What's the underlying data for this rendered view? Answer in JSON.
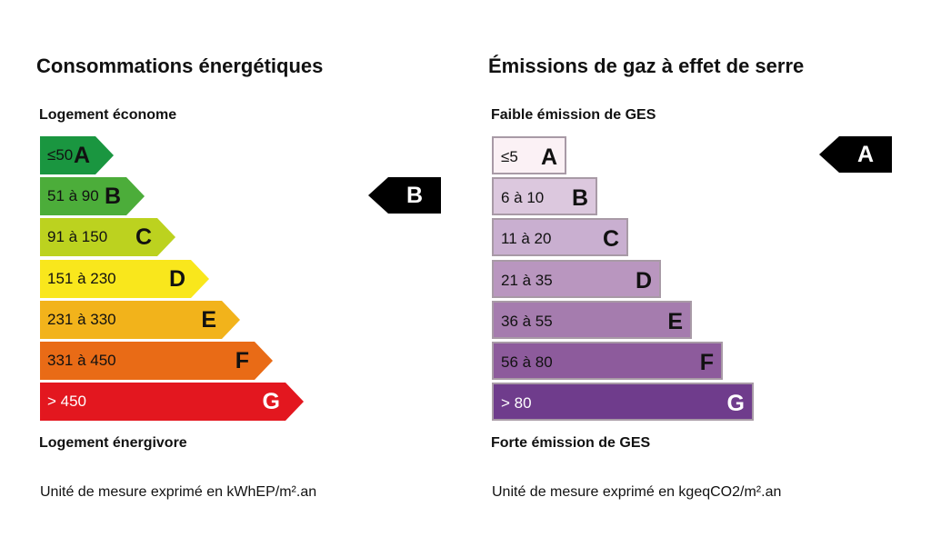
{
  "energy": {
    "title": "Consommations énergétiques",
    "top_label": "Logement économe",
    "bottom_label": "Logement énergivore",
    "unit_note": "Unité de mesure exprimé en kWhEP/m².an",
    "rating": "B",
    "classes": [
      {
        "range": "≤50",
        "letter": "A",
        "color": "#1a9640",
        "text_color": "#111111"
      },
      {
        "range": "51 à 90",
        "letter": "B",
        "color": "#4cad3a",
        "text_color": "#111111"
      },
      {
        "range": "91 à 150",
        "letter": "C",
        "color": "#bcd21f",
        "text_color": "#111111"
      },
      {
        "range": "151 à 230",
        "letter": "D",
        "color": "#f9e71c",
        "text_color": "#111111"
      },
      {
        "range": "231 à 330",
        "letter": "E",
        "color": "#f2b31b",
        "text_color": "#111111"
      },
      {
        "range": "331 à 450",
        "letter": "F",
        "color": "#e96b16",
        "text_color": "#111111"
      },
      {
        "range": "> 450",
        "letter": "G",
        "color": "#e3171f",
        "text_color": "#ffffff"
      }
    ]
  },
  "ges": {
    "title": "Émissions de gaz à effet de serre",
    "top_label": "Faible émission de GES",
    "bottom_label": "Forte émission de GES",
    "unit_note": "Unité de mesure exprimé en kgeqCO2/m².an",
    "rating": "A",
    "classes": [
      {
        "range": "≤5",
        "letter": "A",
        "color": "#fbf1f5",
        "text_color": "#111111"
      },
      {
        "range": "6 à 10",
        "letter": "B",
        "color": "#dcc8de",
        "text_color": "#111111"
      },
      {
        "range": "11 à 20",
        "letter": "C",
        "color": "#c9afd0",
        "text_color": "#111111"
      },
      {
        "range": "21 à 35",
        "letter": "D",
        "color": "#b996bf",
        "text_color": "#111111"
      },
      {
        "range": "36 à 55",
        "letter": "E",
        "color": "#a57cae",
        "text_color": "#111111"
      },
      {
        "range": "56 à 80",
        "letter": "F",
        "color": "#8d5b9c",
        "text_color": "#111111"
      },
      {
        "range": "> 80",
        "letter": "G",
        "color": "#6f3c8c",
        "text_color": "#ffffff"
      }
    ]
  }
}
